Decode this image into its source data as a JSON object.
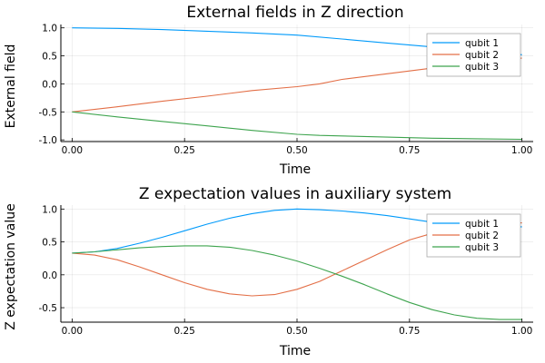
{
  "chart_data": [
    {
      "type": "line",
      "title": "External fields in Z direction",
      "xlabel": "Time",
      "ylabel": "External field",
      "xlim": [
        -0.025,
        1.025
      ],
      "ylim": [
        -1.03,
        1.06
      ],
      "xticks": [
        0.0,
        0.25,
        0.5,
        0.75,
        1.0
      ],
      "xtick_labels": [
        "0.00",
        "0.25",
        "0.50",
        "0.75",
        "1.00"
      ],
      "yticks": [
        -1.0,
        -0.5,
        0.0,
        0.5,
        1.0
      ],
      "ytick_labels": [
        "-1.0",
        "-0.5",
        "0.0",
        "0.5",
        "1.0"
      ],
      "grid": true,
      "legend": "top-right",
      "series": [
        {
          "name": "qubit 1",
          "color": "#009AFA",
          "x": [
            0.0,
            0.1,
            0.2,
            0.3,
            0.4,
            0.5,
            0.6,
            0.7,
            0.8,
            0.9,
            1.0
          ],
          "y": [
            1.0,
            0.99,
            0.97,
            0.94,
            0.91,
            0.87,
            0.8,
            0.73,
            0.66,
            0.58,
            0.52
          ]
        },
        {
          "name": "qubit 2",
          "color": "#E36F47",
          "x": [
            0.0,
            0.1,
            0.2,
            0.3,
            0.4,
            0.5,
            0.55,
            0.6,
            0.7,
            0.8,
            0.9,
            1.0
          ],
          "y": [
            -0.5,
            -0.41,
            -0.31,
            -0.22,
            -0.12,
            -0.05,
            0.0,
            0.08,
            0.18,
            0.28,
            0.37,
            0.46
          ]
        },
        {
          "name": "qubit 3",
          "color": "#3EA44E",
          "x": [
            0.0,
            0.1,
            0.2,
            0.3,
            0.4,
            0.5,
            0.55,
            0.6,
            0.7,
            0.8,
            0.9,
            1.0
          ],
          "y": [
            -0.5,
            -0.59,
            -0.67,
            -0.75,
            -0.83,
            -0.9,
            -0.92,
            -0.93,
            -0.95,
            -0.97,
            -0.98,
            -0.99
          ]
        }
      ]
    },
    {
      "type": "line",
      "title": "Z expectation values in auxiliary system",
      "xlabel": "Time",
      "ylabel": "Z expectation value",
      "xlim": [
        -0.025,
        1.025
      ],
      "ylim": [
        -0.72,
        1.06
      ],
      "xticks": [
        0.0,
        0.25,
        0.5,
        0.75,
        1.0
      ],
      "xtick_labels": [
        "0.00",
        "0.25",
        "0.50",
        "0.75",
        "1.00"
      ],
      "yticks": [
        -0.5,
        0.0,
        0.5,
        1.0
      ],
      "ytick_labels": [
        "-0.5",
        "0.0",
        "0.5",
        "1.0"
      ],
      "grid": true,
      "legend": "top-right",
      "series": [
        {
          "name": "qubit 1",
          "color": "#009AFA",
          "x": [
            0.0,
            0.05,
            0.1,
            0.15,
            0.2,
            0.25,
            0.3,
            0.35,
            0.4,
            0.45,
            0.5,
            0.55,
            0.6,
            0.65,
            0.7,
            0.75,
            0.8,
            0.85,
            0.9,
            0.95,
            1.0
          ],
          "y": [
            0.33,
            0.35,
            0.4,
            0.48,
            0.57,
            0.67,
            0.77,
            0.86,
            0.93,
            0.98,
            1.0,
            0.99,
            0.97,
            0.94,
            0.9,
            0.85,
            0.8,
            0.77,
            0.74,
            0.73,
            0.73
          ]
        },
        {
          "name": "qubit 2",
          "color": "#E36F47",
          "x": [
            0.0,
            0.05,
            0.1,
            0.15,
            0.2,
            0.25,
            0.3,
            0.35,
            0.4,
            0.45,
            0.5,
            0.55,
            0.6,
            0.65,
            0.7,
            0.75,
            0.8,
            0.85,
            0.9,
            0.95,
            1.0
          ],
          "y": [
            0.33,
            0.3,
            0.23,
            0.12,
            0.0,
            -0.12,
            -0.22,
            -0.29,
            -0.32,
            -0.3,
            -0.22,
            -0.1,
            0.06,
            0.22,
            0.38,
            0.53,
            0.63,
            0.7,
            0.75,
            0.78,
            0.79
          ]
        },
        {
          "name": "qubit 3",
          "color": "#3EA44E",
          "x": [
            0.0,
            0.05,
            0.1,
            0.15,
            0.2,
            0.25,
            0.3,
            0.35,
            0.4,
            0.45,
            0.5,
            0.55,
            0.6,
            0.65,
            0.7,
            0.75,
            0.8,
            0.85,
            0.9,
            0.95,
            1.0
          ],
          "y": [
            0.33,
            0.35,
            0.38,
            0.41,
            0.43,
            0.44,
            0.44,
            0.42,
            0.37,
            0.3,
            0.21,
            0.1,
            -0.02,
            -0.15,
            -0.29,
            -0.42,
            -0.53,
            -0.61,
            -0.66,
            -0.68,
            -0.68
          ]
        }
      ]
    }
  ]
}
